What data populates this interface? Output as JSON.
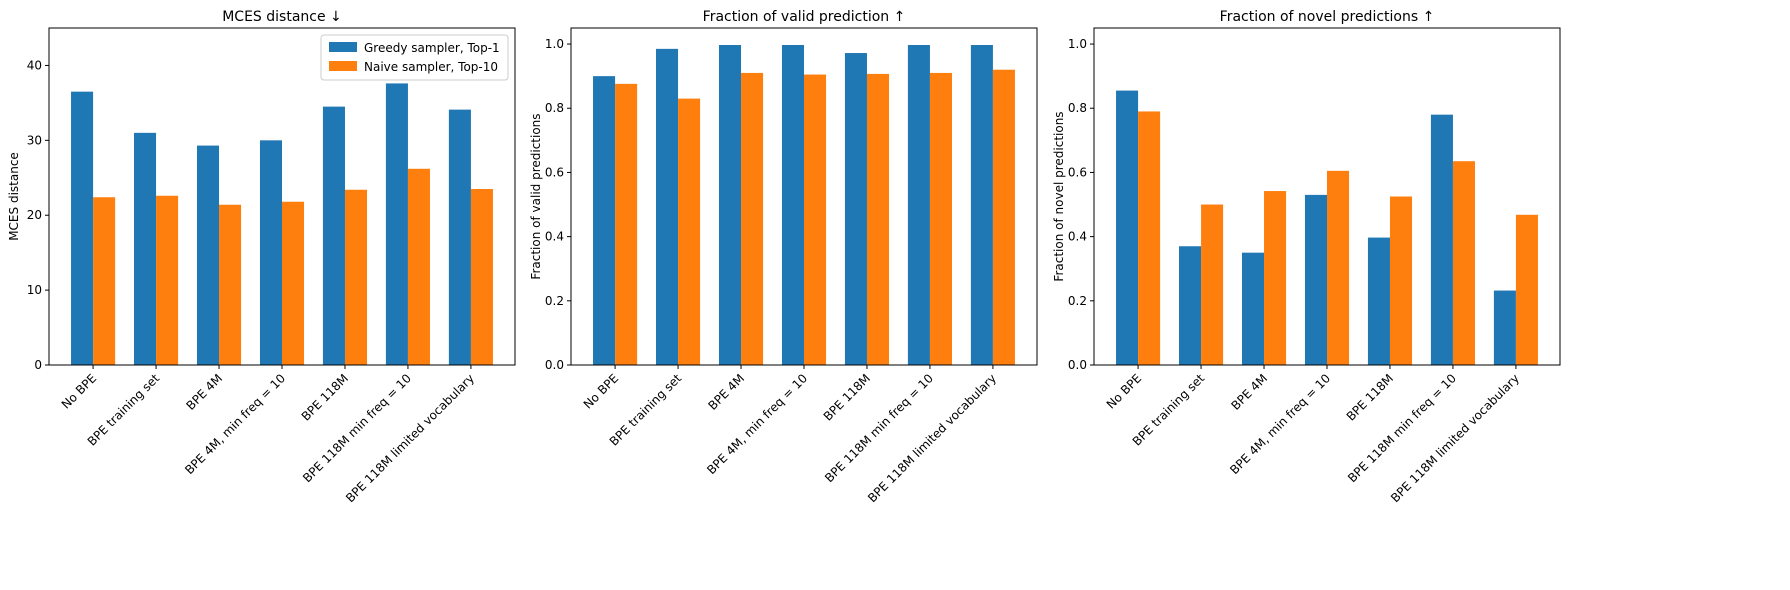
{
  "colors": {
    "series_1": "#1f77b4",
    "series_2": "#ff7f0e"
  },
  "chart_data": [
    {
      "type": "bar",
      "title": "MCES distance ↓",
      "xlabel": "",
      "ylabel": "MCES distance",
      "ylim": [
        0,
        45
      ],
      "yticks": [
        0,
        10,
        20,
        30,
        40
      ],
      "ytick_labels": [
        "0",
        "10",
        "20",
        "30",
        "40"
      ],
      "grid": false,
      "legend": "top-right",
      "categories": [
        "No BPE",
        "BPE training set",
        "BPE 4M",
        "BPE 4M, min freq = 10",
        "BPE 118M",
        "BPE 118M min freq = 10",
        "BPE 118M limited vocabulary"
      ],
      "series": [
        {
          "name": "Greedy sampler, Top-1",
          "values": [
            36.5,
            31.0,
            29.3,
            30.0,
            34.5,
            37.6,
            34.1
          ]
        },
        {
          "name": "Naive sampler, Top-10",
          "values": [
            22.4,
            22.6,
            21.4,
            21.8,
            23.4,
            26.2,
            23.5
          ]
        }
      ]
    },
    {
      "type": "bar",
      "title": "Fraction of valid prediction ↑",
      "xlabel": "",
      "ylabel": "Fraction of valid predictions",
      "ylim": [
        0,
        1.05
      ],
      "yticks": [
        0,
        0.2,
        0.4,
        0.6,
        0.8,
        1.0
      ],
      "ytick_labels": [
        "0.0",
        "0.2",
        "0.4",
        "0.6",
        "0.8",
        "1.0"
      ],
      "grid": false,
      "categories": [
        "No BPE",
        "BPE training set",
        "BPE 4M",
        "BPE 4M, min freq = 10",
        "BPE 118M",
        "BPE 118M min freq = 10",
        "BPE 118M limited vocabulary"
      ],
      "series": [
        {
          "values": [
            0.9,
            0.985,
            0.997,
            0.997,
            0.972,
            0.997,
            0.997
          ]
        },
        {
          "values": [
            0.876,
            0.83,
            0.91,
            0.905,
            0.907,
            0.91,
            0.92
          ]
        }
      ]
    },
    {
      "type": "bar",
      "title": "Fraction of novel predictions ↑",
      "xlabel": "",
      "ylabel": "Fraction of novel predictions",
      "ylim": [
        0,
        1.05
      ],
      "yticks": [
        0,
        0.2,
        0.4,
        0.6,
        0.8,
        1.0
      ],
      "ytick_labels": [
        "0.0",
        "0.2",
        "0.4",
        "0.6",
        "0.8",
        "1.0"
      ],
      "grid": false,
      "categories": [
        "No BPE",
        "BPE training set",
        "BPE 4M",
        "BPE 4M, min freq = 10",
        "BPE 118M",
        "BPE 118M min freq = 10",
        "BPE 118M limited vocabulary"
      ],
      "series": [
        {
          "values": [
            0.855,
            0.37,
            0.35,
            0.53,
            0.397,
            0.78,
            0.232
          ]
        },
        {
          "values": [
            0.79,
            0.5,
            0.542,
            0.605,
            0.525,
            0.635,
            0.468
          ]
        }
      ]
    }
  ]
}
